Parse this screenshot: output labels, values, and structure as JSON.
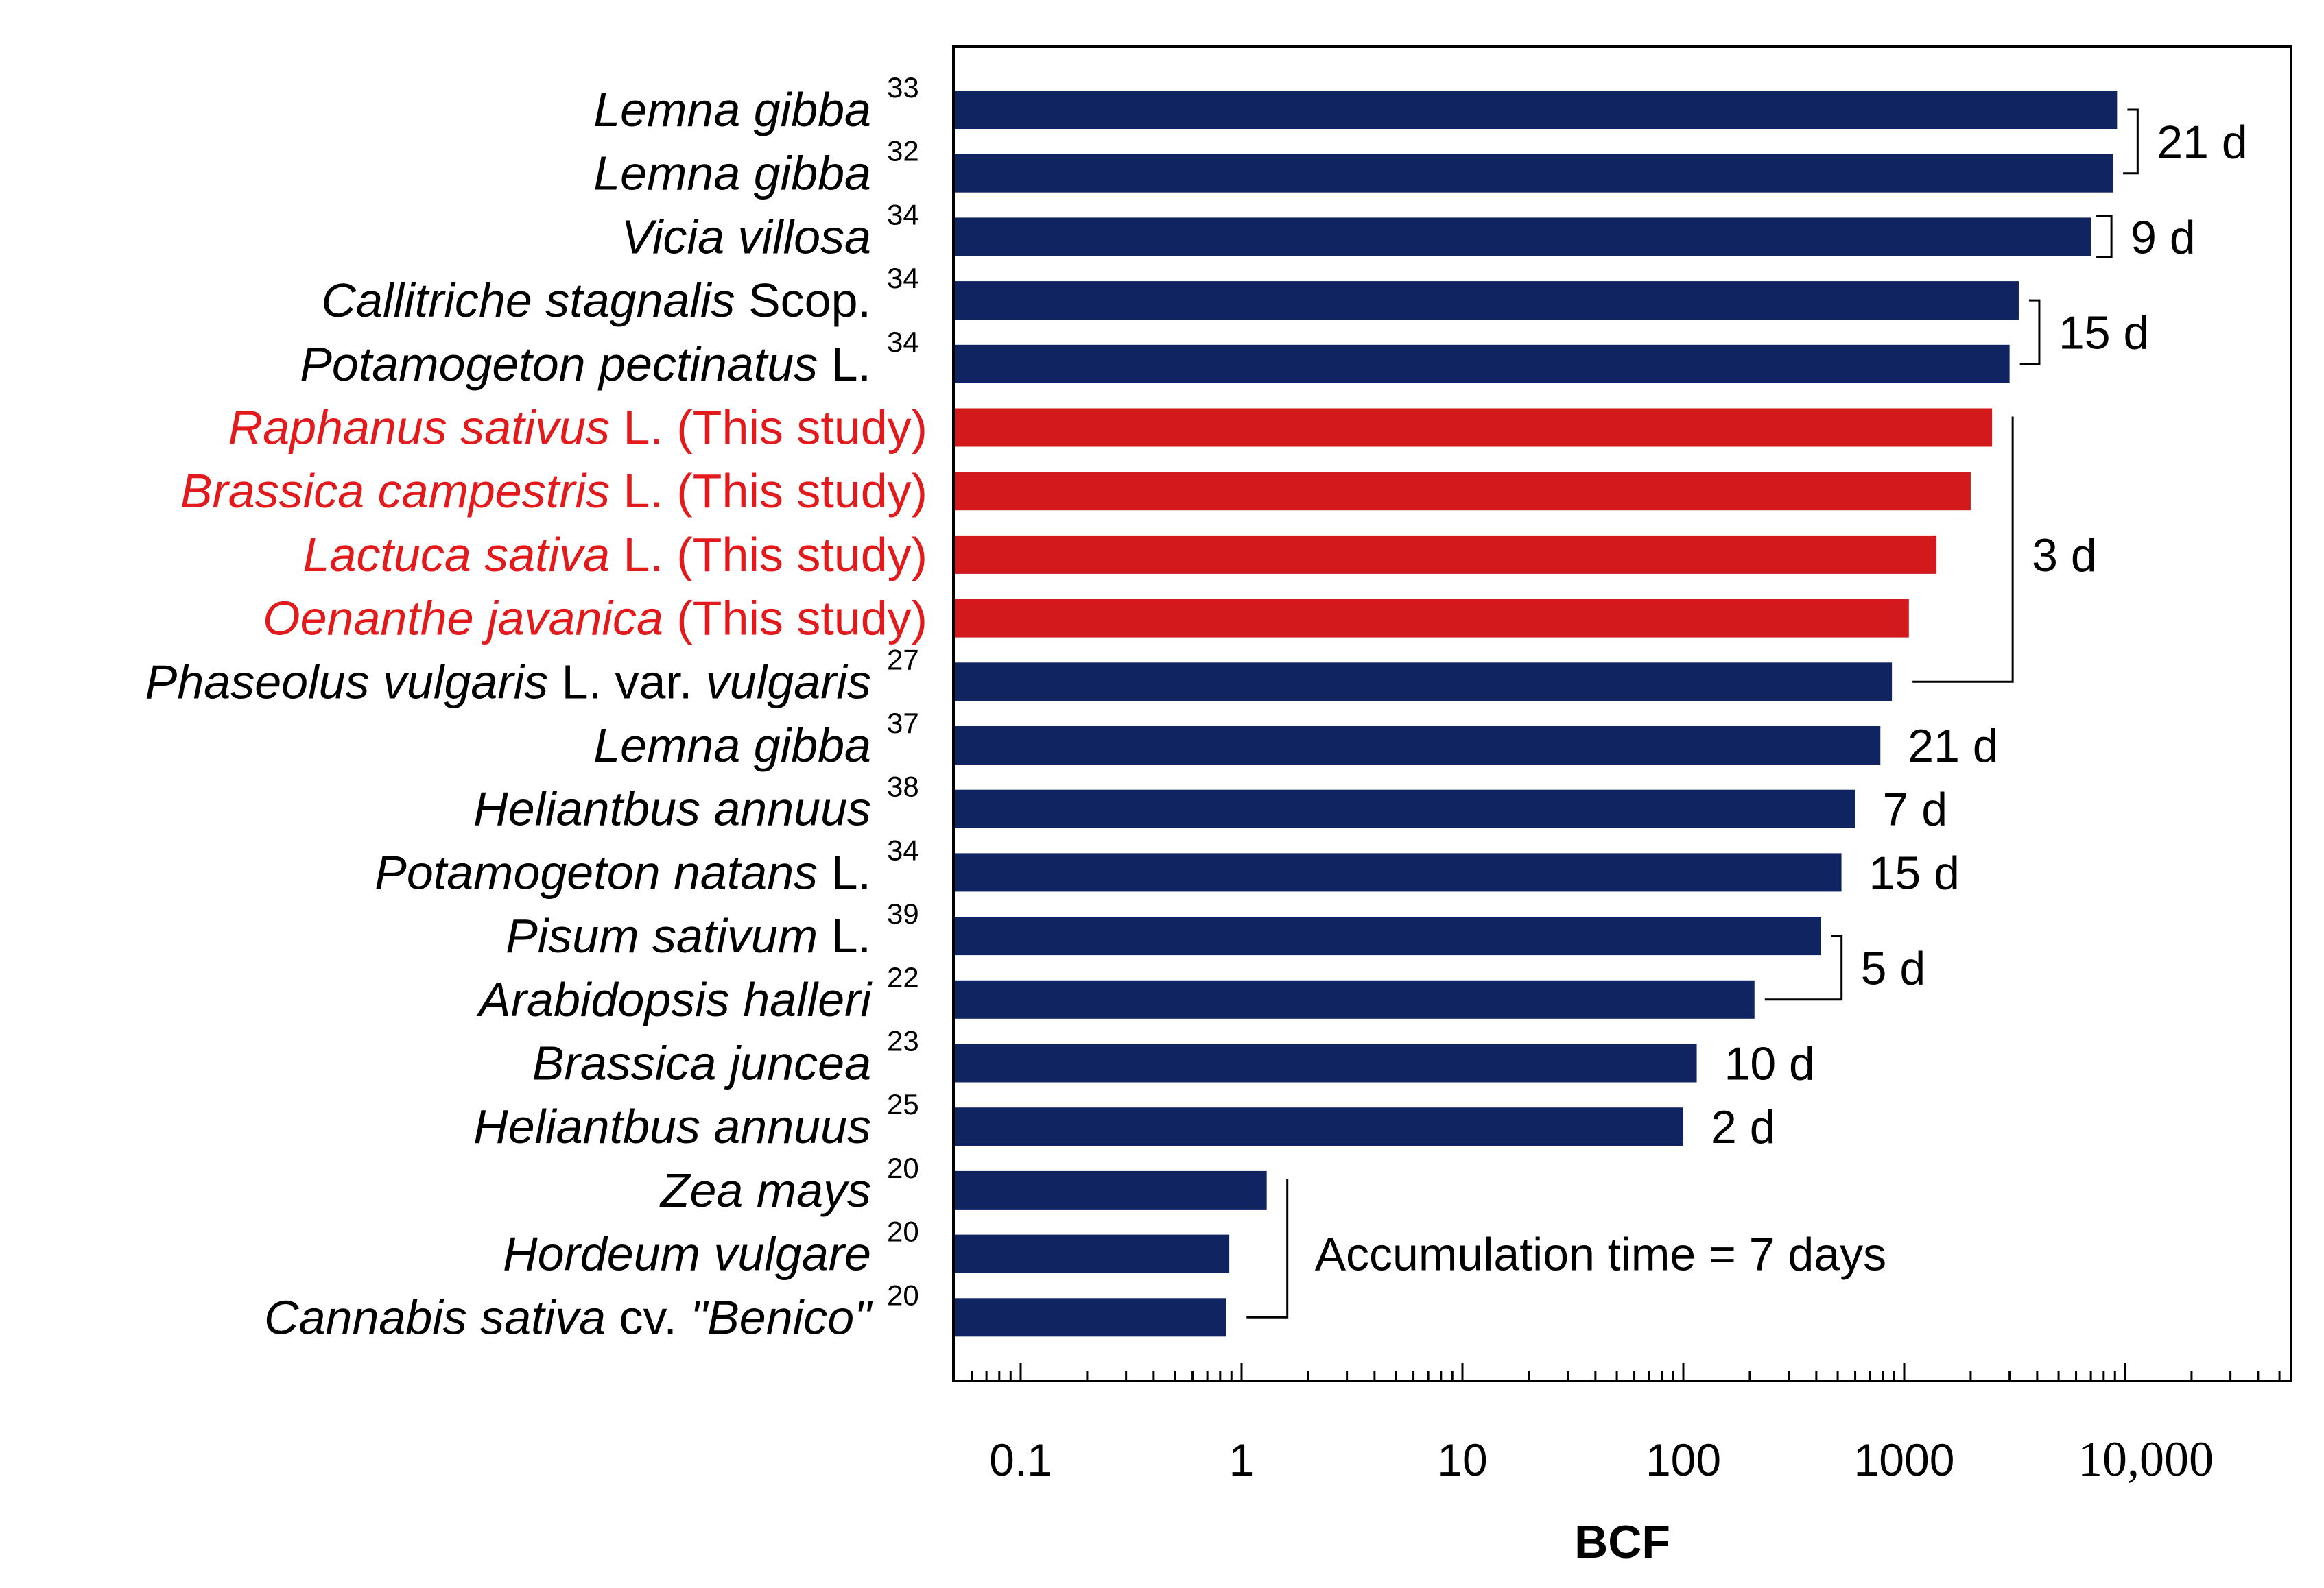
{
  "chart_data": {
    "type": "bar",
    "orientation": "horizontal",
    "x_scale": "log",
    "xlabel": "BCF",
    "xlim": [
      0.05,
      60000
    ],
    "xticks": [
      {
        "value": 0.1,
        "label": "0.1"
      },
      {
        "value": 1,
        "label": "1"
      },
      {
        "value": 10,
        "label": "10"
      },
      {
        "value": 100,
        "label": "100"
      },
      {
        "value": 1000,
        "label": "1000"
      },
      {
        "value": 10000,
        "label": "10,000"
      }
    ],
    "colors": {
      "reference": "#0f2460",
      "this_study": "#d4191c",
      "this_study_text": "#e31a1c"
    },
    "bars": [
      {
        "parts": [
          {
            "t": "Lemna gibba",
            "i": true
          }
        ],
        "ref": "33",
        "value": 9200,
        "group": "reference"
      },
      {
        "parts": [
          {
            "t": "Lemna gibba",
            "i": true
          }
        ],
        "ref": "32",
        "value": 8800,
        "group": "reference"
      },
      {
        "parts": [
          {
            "t": "Vicia villosa",
            "i": true
          }
        ],
        "ref": "34",
        "value": 7000,
        "group": "reference"
      },
      {
        "parts": [
          {
            "t": "Callitriche stagnalis",
            "i": true
          },
          {
            "t": " Scop.",
            "i": false
          }
        ],
        "ref": "34",
        "value": 3300,
        "group": "reference"
      },
      {
        "parts": [
          {
            "t": "Potamogeton pectinatus",
            "i": true
          },
          {
            "t": " L.",
            "i": false
          }
        ],
        "ref": "34",
        "value": 3000,
        "group": "reference"
      },
      {
        "parts": [
          {
            "t": "Raphanus sativus",
            "i": true
          },
          {
            "t": " L. (This study)",
            "i": false
          }
        ],
        "ref": "",
        "value": 2500,
        "group": "this_study"
      },
      {
        "parts": [
          {
            "t": "Brassica campestris",
            "i": true
          },
          {
            "t": " L. (This study)",
            "i": false
          }
        ],
        "ref": "",
        "value": 2000,
        "group": "this_study"
      },
      {
        "parts": [
          {
            "t": "Lactuca sativa",
            "i": true
          },
          {
            "t": " L. (This study)",
            "i": false
          }
        ],
        "ref": "",
        "value": 1400,
        "group": "this_study"
      },
      {
        "parts": [
          {
            "t": "Oenanthe javanica",
            "i": true
          },
          {
            "t": " (This study)",
            "i": false
          }
        ],
        "ref": "",
        "value": 1050,
        "group": "this_study"
      },
      {
        "parts": [
          {
            "t": "Phaseolus vulgaris",
            "i": true
          },
          {
            "t": " L. var. ",
            "i": false
          },
          {
            "t": "vulgaris",
            "i": true
          }
        ],
        "ref": "27",
        "value": 880,
        "group": "reference"
      },
      {
        "parts": [
          {
            "t": "Lemna gibba",
            "i": true
          }
        ],
        "ref": "37",
        "value": 780,
        "group": "reference"
      },
      {
        "parts": [
          {
            "t": "Heliantbus annuus",
            "i": true
          }
        ],
        "ref": "38",
        "value": 600,
        "group": "reference"
      },
      {
        "parts": [
          {
            "t": "Potamogeton natans",
            "i": true
          },
          {
            "t": " L.",
            "i": false
          }
        ],
        "ref": "34",
        "value": 520,
        "group": "reference"
      },
      {
        "parts": [
          {
            "t": "Pisum sativum",
            "i": true
          },
          {
            "t": " L.",
            "i": false
          }
        ],
        "ref": "39",
        "value": 420,
        "group": "reference"
      },
      {
        "parts": [
          {
            "t": "Arabidopsis halleri",
            "i": true
          }
        ],
        "ref": "22",
        "value": 210,
        "group": "reference"
      },
      {
        "parts": [
          {
            "t": "Brassica juncea",
            "i": true
          }
        ],
        "ref": "23",
        "value": 115,
        "group": "reference"
      },
      {
        "parts": [
          {
            "t": "Heliantbus annuus",
            "i": true
          }
        ],
        "ref": "25",
        "value": 100,
        "group": "reference"
      },
      {
        "parts": [
          {
            "t": "Zea mays",
            "i": true
          }
        ],
        "ref": "20",
        "value": 1.3,
        "group": "reference"
      },
      {
        "parts": [
          {
            "t": "Hordeum vulgare",
            "i": true
          }
        ],
        "ref": "20",
        "value": 0.88,
        "group": "reference"
      },
      {
        "parts": [
          {
            "t": "Cannabis sativa",
            "i": true
          },
          {
            "t": " cv. ",
            "i": false
          },
          {
            "t": "\"Benico\"",
            "i": true
          }
        ],
        "ref": "20",
        "value": 0.85,
        "group": "reference"
      }
    ],
    "annotations": [
      {
        "text": "21 d",
        "from": 0,
        "to": 1,
        "bracket": true
      },
      {
        "text": "9 d",
        "from": 2,
        "to": 2,
        "bracket": true
      },
      {
        "text": "15 d",
        "from": 3,
        "to": 4,
        "bracket": true
      },
      {
        "text": "3 d",
        "from": 5,
        "to": 9,
        "bracket": true
      },
      {
        "text": "21 d",
        "from": 10,
        "to": 10,
        "bracket": false
      },
      {
        "text": "7 d",
        "from": 11,
        "to": 11,
        "bracket": false
      },
      {
        "text": "15 d",
        "from": 12,
        "to": 12,
        "bracket": false
      },
      {
        "text": "5 d",
        "from": 13,
        "to": 14,
        "bracket": true
      },
      {
        "text": "10 d",
        "from": 15,
        "to": 15,
        "bracket": false
      },
      {
        "text": "2 d",
        "from": 16,
        "to": 16,
        "bracket": false
      },
      {
        "text": "Accumulation time = 7 days",
        "from": 17,
        "to": 19,
        "bracket": true
      }
    ]
  }
}
